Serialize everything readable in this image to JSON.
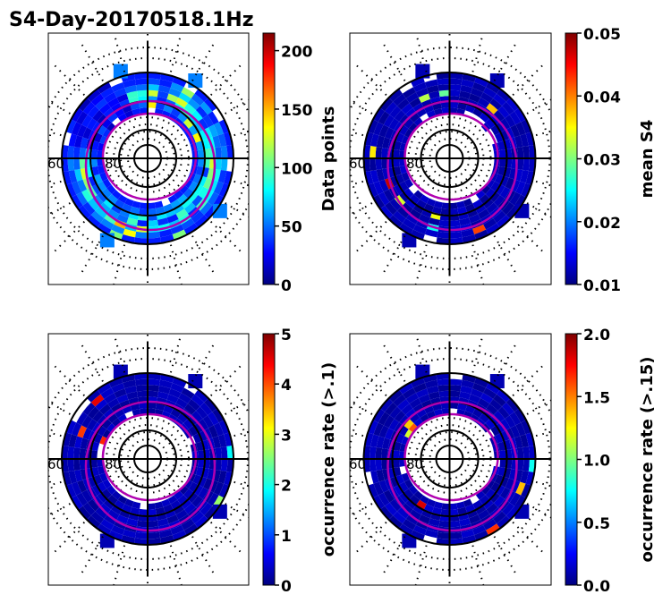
{
  "title": "S4-Day-20170518.1Hz",
  "colors": {
    "jet": [
      "#00007f",
      "#0000ff",
      "#007fff",
      "#00ffff",
      "#7fff7f",
      "#ffff00",
      "#ff7f00",
      "#ff0000",
      "#7f0000"
    ],
    "oval": "#b000b0",
    "background_low": "#00008f"
  },
  "chart_data": [
    {
      "type": "heatmap",
      "projection": "polar",
      "lat_labels": [
        "60",
        "80"
      ],
      "colorbar": {
        "label": "Data points",
        "range": [
          0,
          215
        ],
        "ticks": [
          "0",
          "50",
          "100",
          "150",
          "200"
        ]
      },
      "pattern": "ring"
    },
    {
      "type": "heatmap",
      "projection": "polar",
      "lat_labels": [
        "60",
        "80"
      ],
      "colorbar": {
        "label": "mean S4",
        "range": [
          0.01,
          0.05
        ],
        "ticks": [
          "0.01",
          "0.02",
          "0.03",
          "0.04",
          "0.05"
        ]
      },
      "pattern": "low"
    },
    {
      "type": "heatmap",
      "projection": "polar",
      "lat_labels": [
        "60",
        "80"
      ],
      "colorbar": {
        "label": "occurrence rate (>.1)",
        "range": [
          0,
          5
        ],
        "ticks": [
          "0",
          "1",
          "2",
          "3",
          "4",
          "5"
        ]
      },
      "pattern": "low"
    },
    {
      "type": "heatmap",
      "projection": "polar",
      "lat_labels": [
        "60",
        "80"
      ],
      "colorbar": {
        "label": "occurrence rate (>.15)",
        "range": [
          0.0,
          2.0
        ],
        "ticks": [
          "0.0",
          "0.5",
          "1.0",
          "1.5",
          "2.0"
        ]
      },
      "pattern": "low"
    }
  ]
}
